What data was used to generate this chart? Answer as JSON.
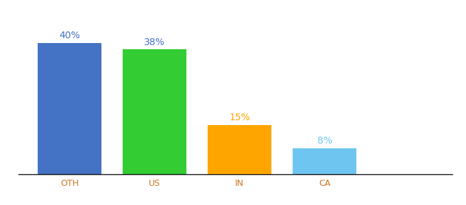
{
  "categories": [
    "OTH",
    "US",
    "IN",
    "CA"
  ],
  "values": [
    40,
    38,
    15,
    8
  ],
  "bar_colors": [
    "#4472C4",
    "#33CC33",
    "#FFA500",
    "#6EC6F0"
  ],
  "label_colors": [
    "#4472C4",
    "#4472C4",
    "#FFA500",
    "#6EC6F0"
  ],
  "labels": [
    "40%",
    "38%",
    "15%",
    "8%"
  ],
  "background_color": "#ffffff",
  "ylim": [
    0,
    48
  ],
  "bar_width": 0.75,
  "label_fontsize": 10,
  "tick_fontsize": 9,
  "x_tick_color": "#CC7722"
}
